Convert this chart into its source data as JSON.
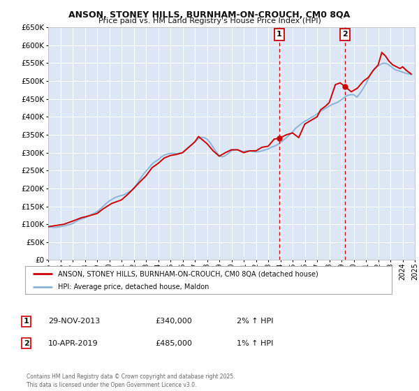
{
  "title": "ANSON, STONEY HILLS, BURNHAM-ON-CROUCH, CM0 8QA",
  "subtitle": "Price paid vs. HM Land Registry's House Price Index (HPI)",
  "ylim": [
    0,
    650000
  ],
  "xlim": [
    1995,
    2025
  ],
  "yticks": [
    0,
    50000,
    100000,
    150000,
    200000,
    250000,
    300000,
    350000,
    400000,
    450000,
    500000,
    550000,
    600000,
    650000
  ],
  "ytick_labels": [
    "£0",
    "£50K",
    "£100K",
    "£150K",
    "£200K",
    "£250K",
    "£300K",
    "£350K",
    "£400K",
    "£450K",
    "£500K",
    "£550K",
    "£600K",
    "£650K"
  ],
  "xticks": [
    1995,
    1996,
    1997,
    1998,
    1999,
    2000,
    2001,
    2002,
    2003,
    2004,
    2005,
    2006,
    2007,
    2008,
    2009,
    2010,
    2011,
    2012,
    2013,
    2014,
    2015,
    2016,
    2017,
    2018,
    2019,
    2020,
    2021,
    2022,
    2023,
    2024,
    2025
  ],
  "background_color": "#ffffff",
  "plot_bg_color": "#dce6f5",
  "grid_color": "#ffffff",
  "red_line_color": "#cc0000",
  "blue_line_color": "#8ab4d8",
  "marker1_x": 2013.91,
  "marker1_y": 340000,
  "marker2_x": 2019.27,
  "marker2_y": 485000,
  "vline1_x": 2013.91,
  "vline2_x": 2019.27,
  "vline_color": "#cc0000",
  "legend_label_red": "ANSON, STONEY HILLS, BURNHAM-ON-CROUCH, CM0 8QA (detached house)",
  "legend_label_blue": "HPI: Average price, detached house, Maldon",
  "annotation1_date": "29-NOV-2013",
  "annotation1_price": "£340,000",
  "annotation1_hpi": "2% ↑ HPI",
  "annotation2_date": "10-APR-2019",
  "annotation2_price": "£485,000",
  "annotation2_hpi": "1% ↑ HPI",
  "copyright_text": "Contains HM Land Registry data © Crown copyright and database right 2025.\nThis data is licensed under the Open Government Licence v3.0.",
  "hpi_data_x": [
    1995.0,
    1995.25,
    1995.5,
    1995.75,
    1996.0,
    1996.25,
    1996.5,
    1996.75,
    1997.0,
    1997.25,
    1997.5,
    1997.75,
    1998.0,
    1998.25,
    1998.5,
    1998.75,
    1999.0,
    1999.25,
    1999.5,
    1999.75,
    2000.0,
    2000.25,
    2000.5,
    2000.75,
    2001.0,
    2001.25,
    2001.5,
    2001.75,
    2002.0,
    2002.25,
    2002.5,
    2002.75,
    2003.0,
    2003.25,
    2003.5,
    2003.75,
    2004.0,
    2004.25,
    2004.5,
    2004.75,
    2005.0,
    2005.25,
    2005.5,
    2005.75,
    2006.0,
    2006.25,
    2006.5,
    2006.75,
    2007.0,
    2007.25,
    2007.5,
    2007.75,
    2008.0,
    2008.25,
    2008.5,
    2008.75,
    2009.0,
    2009.25,
    2009.5,
    2009.75,
    2010.0,
    2010.25,
    2010.5,
    2010.75,
    2011.0,
    2011.25,
    2011.5,
    2011.75,
    2012.0,
    2012.25,
    2012.5,
    2012.75,
    2013.0,
    2013.25,
    2013.5,
    2013.75,
    2014.0,
    2014.25,
    2014.5,
    2014.75,
    2015.0,
    2015.25,
    2015.5,
    2015.75,
    2016.0,
    2016.25,
    2016.5,
    2016.75,
    2017.0,
    2017.25,
    2017.5,
    2017.75,
    2018.0,
    2018.25,
    2018.5,
    2018.75,
    2019.0,
    2019.25,
    2019.5,
    2019.75,
    2020.0,
    2020.25,
    2020.5,
    2020.75,
    2021.0,
    2021.25,
    2021.5,
    2021.75,
    2022.0,
    2022.25,
    2022.5,
    2022.75,
    2023.0,
    2023.25,
    2023.5,
    2023.75,
    2024.0,
    2024.25,
    2024.5,
    2024.75
  ],
  "hpi_data_y": [
    93000,
    92000,
    91000,
    92000,
    93000,
    95000,
    97000,
    99000,
    102000,
    107000,
    112000,
    115000,
    118000,
    122000,
    127000,
    130000,
    135000,
    142000,
    150000,
    158000,
    165000,
    170000,
    175000,
    178000,
    180000,
    183000,
    188000,
    193000,
    200000,
    212000,
    225000,
    238000,
    248000,
    258000,
    268000,
    275000,
    280000,
    288000,
    293000,
    296000,
    298000,
    298000,
    297000,
    298000,
    300000,
    308000,
    315000,
    322000,
    330000,
    338000,
    343000,
    342000,
    338000,
    328000,
    315000,
    302000,
    292000,
    288000,
    292000,
    298000,
    305000,
    308000,
    308000,
    305000,
    303000,
    305000,
    305000,
    303000,
    302000,
    303000,
    305000,
    308000,
    310000,
    315000,
    318000,
    322000,
    328000,
    335000,
    342000,
    350000,
    358000,
    368000,
    375000,
    382000,
    388000,
    392000,
    398000,
    402000,
    408000,
    415000,
    420000,
    425000,
    430000,
    435000,
    438000,
    442000,
    448000,
    455000,
    460000,
    462000,
    462000,
    455000,
    465000,
    478000,
    492000,
    510000,
    525000,
    535000,
    542000,
    548000,
    550000,
    548000,
    542000,
    535000,
    530000,
    528000,
    525000,
    522000,
    520000,
    518000
  ],
  "price_data_x": [
    1995.0,
    1996.3,
    1997.1,
    1997.7,
    1998.3,
    1999.0,
    1999.5,
    2000.2,
    2001.0,
    2001.5,
    2002.0,
    2002.5,
    2003.0,
    2003.5,
    2004.0,
    2004.5,
    2005.0,
    2005.5,
    2006.0,
    2006.5,
    2007.0,
    2007.3,
    2008.0,
    2008.5,
    2009.0,
    2009.5,
    2010.0,
    2010.5,
    2011.0,
    2011.5,
    2012.0,
    2012.5,
    2013.0,
    2013.5,
    2013.91,
    2014.5,
    2015.0,
    2015.5,
    2016.0,
    2016.5,
    2017.0,
    2017.3,
    2017.7,
    2018.0,
    2018.5,
    2018.9,
    2019.27,
    2019.8,
    2020.3,
    2020.8,
    2021.2,
    2021.6,
    2022.0,
    2022.3,
    2022.6,
    2022.9,
    2023.2,
    2023.5,
    2023.8,
    2024.0,
    2024.3,
    2024.7
  ],
  "price_data_y": [
    93000,
    100000,
    110000,
    118000,
    123000,
    130000,
    143000,
    158000,
    168000,
    183000,
    200000,
    218000,
    235000,
    258000,
    270000,
    285000,
    292000,
    295000,
    300000,
    315000,
    330000,
    345000,
    325000,
    305000,
    290000,
    300000,
    308000,
    308000,
    300000,
    305000,
    305000,
    315000,
    318000,
    338000,
    340000,
    350000,
    355000,
    342000,
    380000,
    390000,
    400000,
    420000,
    430000,
    440000,
    490000,
    495000,
    485000,
    470000,
    480000,
    500000,
    510000,
    530000,
    545000,
    580000,
    570000,
    555000,
    545000,
    540000,
    535000,
    540000,
    530000,
    520000
  ]
}
